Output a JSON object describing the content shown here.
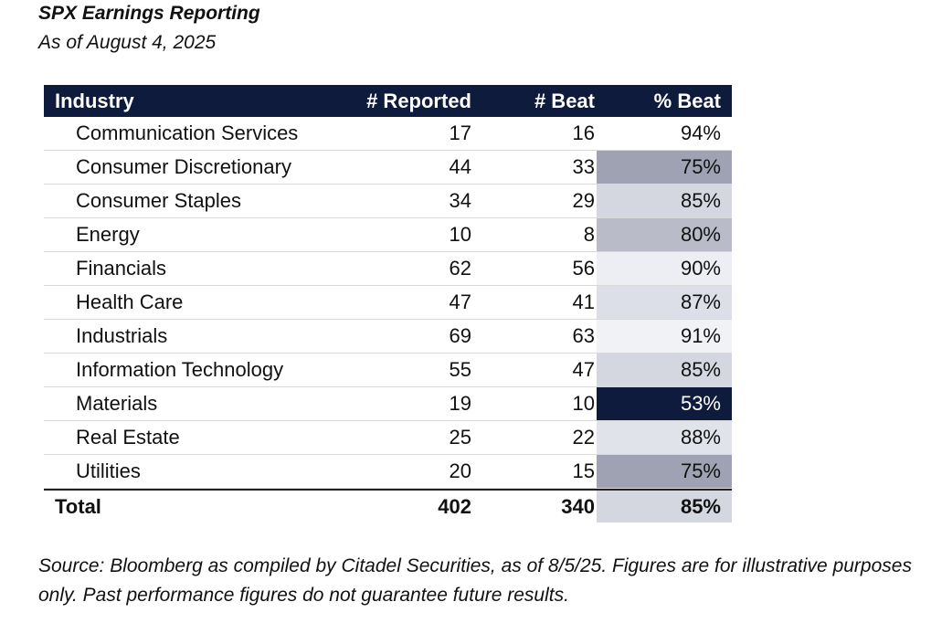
{
  "title": "SPX Earnings Reporting",
  "subtitle": "As of August 4, 2025",
  "table": {
    "headers": {
      "industry": "Industry",
      "reported": "# Reported",
      "beat": "# Beat",
      "pct_beat": "% Beat"
    },
    "header_color": "#0f1b3d",
    "rows": [
      {
        "industry": "Communication Services",
        "reported": "17",
        "beat": "16",
        "pct_beat": "94%",
        "shade": "#ffffff",
        "text_color": "#111111"
      },
      {
        "industry": "Consumer Discretionary",
        "reported": "44",
        "beat": "33",
        "pct_beat": "75%",
        "shade": "#9ea2b3",
        "text_color": "#111111"
      },
      {
        "industry": "Consumer Staples",
        "reported": "34",
        "beat": "29",
        "pct_beat": "85%",
        "shade": "#d4d7e0",
        "text_color": "#111111"
      },
      {
        "industry": "Energy",
        "reported": "10",
        "beat": "8",
        "pct_beat": "80%",
        "shade": "#b9bcc8",
        "text_color": "#111111"
      },
      {
        "industry": "Financials",
        "reported": "62",
        "beat": "56",
        "pct_beat": "90%",
        "shade": "#eceef3",
        "text_color": "#111111"
      },
      {
        "industry": "Health Care",
        "reported": "47",
        "beat": "41",
        "pct_beat": "87%",
        "shade": "#dcdfe7",
        "text_color": "#111111"
      },
      {
        "industry": "Industrials",
        "reported": "69",
        "beat": "63",
        "pct_beat": "91%",
        "shade": "#f1f2f6",
        "text_color": "#111111"
      },
      {
        "industry": "Information Technology",
        "reported": "55",
        "beat": "47",
        "pct_beat": "85%",
        "shade": "#d4d7e0",
        "text_color": "#111111"
      },
      {
        "industry": "Materials",
        "reported": "19",
        "beat": "10",
        "pct_beat": "53%",
        "shade": "#0f1b3d",
        "text_color": "#ffffff"
      },
      {
        "industry": "Real Estate",
        "reported": "25",
        "beat": "22",
        "pct_beat": "88%",
        "shade": "#e1e3ea",
        "text_color": "#111111"
      },
      {
        "industry": "Utilities",
        "reported": "20",
        "beat": "15",
        "pct_beat": "75%",
        "shade": "#9ea2b3",
        "text_color": "#111111"
      }
    ],
    "total": {
      "industry": "Total",
      "reported": "402",
      "beat": "340",
      "pct_beat": "85%",
      "shade": "#d4d7e0",
      "text_color": "#111111"
    }
  },
  "source": "Source: Bloomberg as compiled by Citadel Securities, as of 8/5/25. Figures are for illustrative purposes only. Past performance figures do not guarantee future results."
}
